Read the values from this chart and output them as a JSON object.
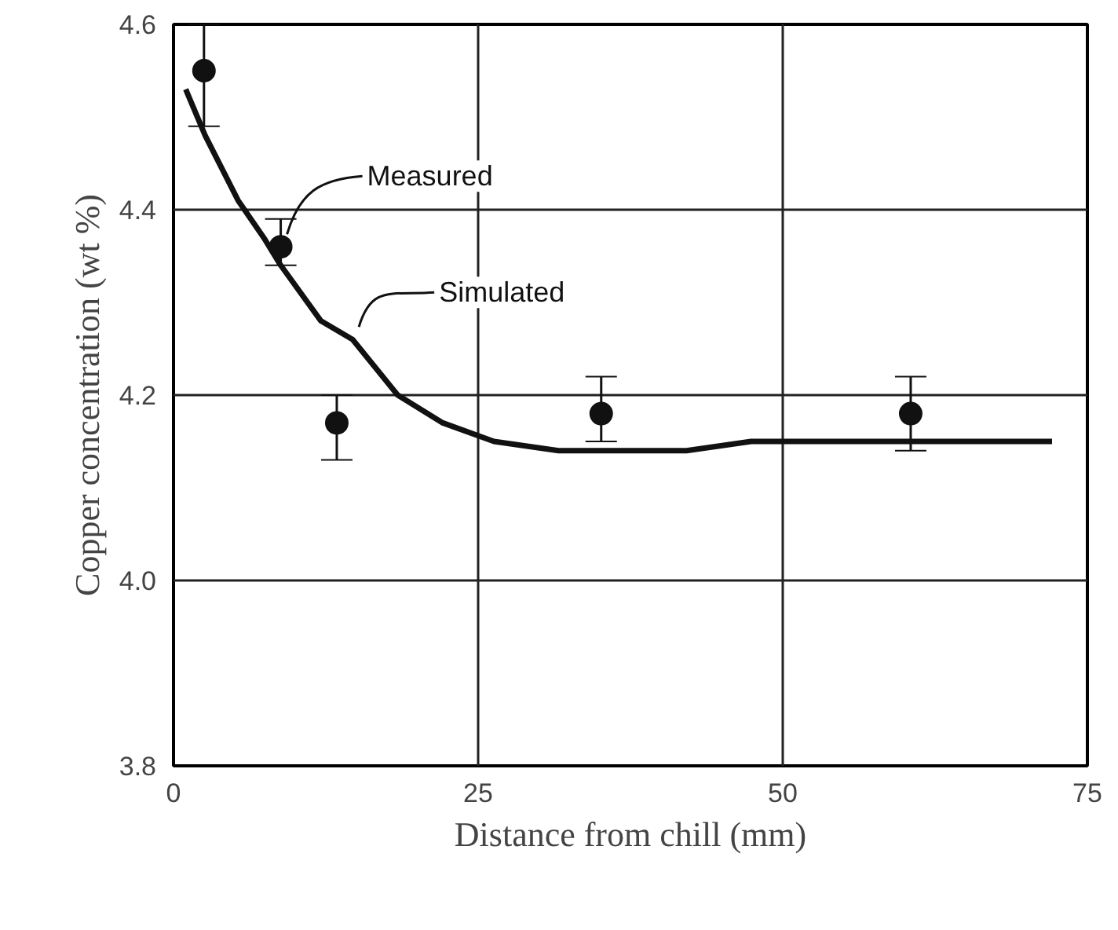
{
  "chart_data": {
    "type": "scatter",
    "xlabel": "Distance from chill (mm)",
    "ylabel": "Copper concentration (wt %)",
    "xlim": [
      0,
      75
    ],
    "xticks": [
      0,
      25,
      50,
      75
    ],
    "ylim": [
      3.8,
      4.6
    ],
    "yticks": [
      {
        "value": 3.8,
        "label": "3.8"
      },
      {
        "value": 4.0,
        "label": "4.0"
      },
      {
        "value": 4.2,
        "label": "4.2"
      },
      {
        "value": 4.4,
        "label": "4.4"
      },
      {
        "value": 4.6,
        "label": "4.6"
      }
    ],
    "grid": true,
    "marker": "circle",
    "series": [
      {
        "name": "Measured",
        "color": "#111111",
        "x": [
          2.5,
          8.8,
          13.4,
          35.1,
          60.5
        ],
        "values": [
          4.55,
          4.36,
          4.17,
          4.18,
          4.18
        ],
        "errors": [
          [
            4.49,
            4.6
          ],
          [
            4.34,
            4.39
          ],
          [
            4.13,
            4.2
          ],
          [
            4.15,
            4.22
          ],
          [
            4.14,
            4.22
          ]
        ]
      },
      {
        "name": "Simulated",
        "type": "line",
        "color": "#111111",
        "marker": "none",
        "line_style": "solid",
        "x": [
          1.0,
          2.6,
          5.3,
          7.4,
          8.8,
          12.1,
          14.7,
          18.4,
          22.1,
          26.3,
          31.6,
          36.8,
          42.1,
          47.4,
          57.9,
          72.1
        ],
        "values": [
          4.53,
          4.48,
          4.41,
          4.37,
          4.34,
          4.28,
          4.26,
          4.2,
          4.17,
          4.15,
          4.14,
          4.14,
          4.14,
          4.15,
          4.15,
          4.15
        ]
      }
    ]
  }
}
